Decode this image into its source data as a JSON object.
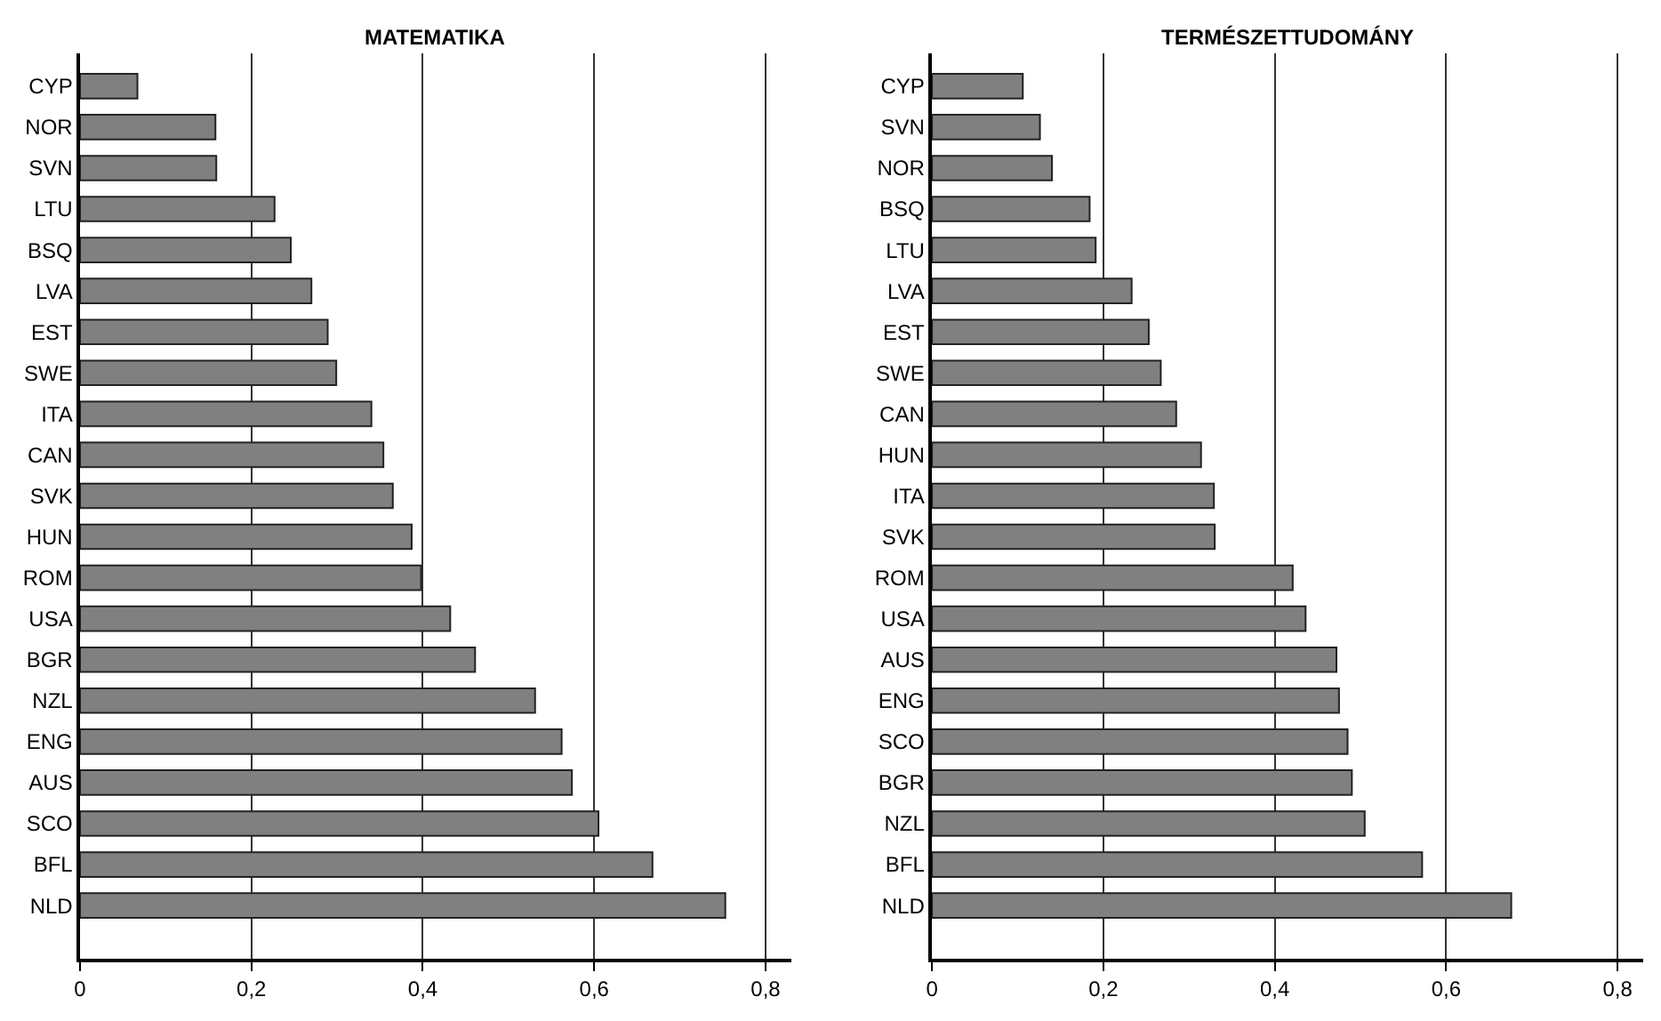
{
  "chart_data": [
    {
      "type": "bar",
      "orientation": "horizontal",
      "title": "MATEMATIKA",
      "categories": [
        "CYP",
        "NOR",
        "SVN",
        "LTU",
        "BSQ",
        "LVA",
        "EST",
        "SWE",
        "ITA",
        "CAN",
        "SVK",
        "HUN",
        "ROM",
        "USA",
        "BGR",
        "NZL",
        "ENG",
        "AUS",
        "SCO",
        "BFL",
        "NLD"
      ],
      "values": [
        0.067,
        0.158,
        0.159,
        0.227,
        0.246,
        0.27,
        0.289,
        0.299,
        0.34,
        0.354,
        0.365,
        0.387,
        0.398,
        0.432,
        0.461,
        0.531,
        0.562,
        0.574,
        0.605,
        0.668,
        0.753
      ],
      "color": "#808080",
      "xlim": [
        0,
        0.83
      ],
      "xticks": [
        0,
        {
          "value": 0.2,
          "label": "0,2"
        },
        {
          "value": 0.4,
          "label": "0,4"
        },
        {
          "value": 0.6,
          "label": "0,6"
        },
        {
          "value": 0.8,
          "label": "0,8"
        }
      ],
      "grid": "x"
    },
    {
      "type": "bar",
      "orientation": "horizontal",
      "title": "TERMÉSZETTUDOMÁNY",
      "categories": [
        "CYP",
        "SVN",
        "NOR",
        "BSQ",
        "LTU",
        "LVA",
        "EST",
        "SWE",
        "CAN",
        "HUN",
        "ITA",
        "SVK",
        "ROM",
        "USA",
        "AUS",
        "ENG",
        "SCO",
        "BGR",
        "NZL",
        "BFL",
        "NLD"
      ],
      "values": [
        0.106,
        0.126,
        0.14,
        0.184,
        0.191,
        0.233,
        0.253,
        0.267,
        0.285,
        0.314,
        0.329,
        0.33,
        0.421,
        0.436,
        0.472,
        0.475,
        0.485,
        0.49,
        0.505,
        0.572,
        0.676
      ],
      "color": "#808080",
      "xlim": [
        0,
        0.83
      ],
      "xticks": [
        0,
        {
          "value": 0.2,
          "label": "0,2"
        },
        {
          "value": 0.4,
          "label": "0,4"
        },
        {
          "value": 0.6,
          "label": "0,6"
        },
        {
          "value": 0.8,
          "label": "0,8"
        }
      ],
      "grid": "x"
    }
  ]
}
